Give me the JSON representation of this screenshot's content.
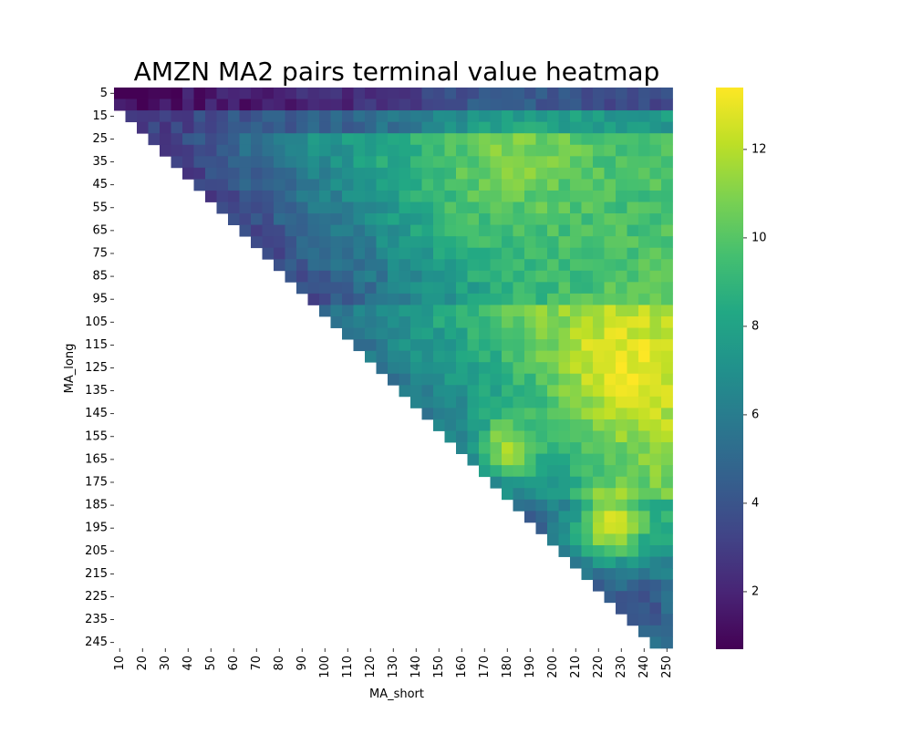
{
  "chart_data": {
    "type": "heatmap",
    "title": "AMZN MA2 pairs terminal value heatmap",
    "xlabel": "MA_short",
    "ylabel": "MA_long",
    "x": [
      10,
      15,
      20,
      25,
      30,
      35,
      40,
      45,
      50,
      55,
      60,
      65,
      70,
      75,
      80,
      85,
      90,
      95,
      100,
      105,
      110,
      115,
      120,
      125,
      130,
      135,
      140,
      145,
      150,
      155,
      160,
      165,
      170,
      175,
      180,
      185,
      190,
      195,
      200,
      205,
      210,
      215,
      220,
      225,
      230,
      235,
      240,
      245,
      250
    ],
    "y": [
      5,
      10,
      15,
      20,
      25,
      30,
      35,
      40,
      45,
      50,
      55,
      60,
      65,
      70,
      75,
      80,
      85,
      90,
      95,
      100,
      105,
      110,
      115,
      120,
      125,
      130,
      135,
      140,
      145,
      150,
      155,
      160,
      165,
      170,
      175,
      180,
      185,
      190,
      195,
      200,
      205,
      210,
      215,
      220,
      225,
      230,
      235,
      240,
      245
    ],
    "x_tick_labels": [
      "10",
      "20",
      "30",
      "40",
      "50",
      "60",
      "70",
      "80",
      "90",
      "100",
      "110",
      "120",
      "130",
      "140",
      "150",
      "160",
      "170",
      "180",
      "190",
      "200",
      "210",
      "220",
      "230",
      "240",
      "250"
    ],
    "y_tick_labels": [
      "5",
      "15",
      "25",
      "35",
      "45",
      "55",
      "65",
      "75",
      "85",
      "95",
      "105",
      "115",
      "125",
      "135",
      "145",
      "155",
      "165",
      "175",
      "185",
      "195",
      "205",
      "215",
      "225",
      "235",
      "245"
    ],
    "mask": "cells where MA_short <= MA_long - 5 are empty",
    "vmin": 0.7,
    "vmax": 13.4,
    "colormap": "viridis",
    "colorbar": {
      "ticks": [
        2,
        4,
        6,
        8,
        10,
        12
      ]
    },
    "approx_values": {
      "row_5": "about 1 at left rising to about 3-4 at right",
      "rows_15_to_45": "about 2-3 near the diagonal, 6-9 toward the right",
      "rows_100_to_175": "mostly 6-10, with peak near 12 around MA_short 170-180",
      "rows_185_to_205": "peak about 13 near MA_short 220-230",
      "rows_215_to_245": "about 4-8"
    },
    "grid": false,
    "legend": "colorbar-right"
  }
}
